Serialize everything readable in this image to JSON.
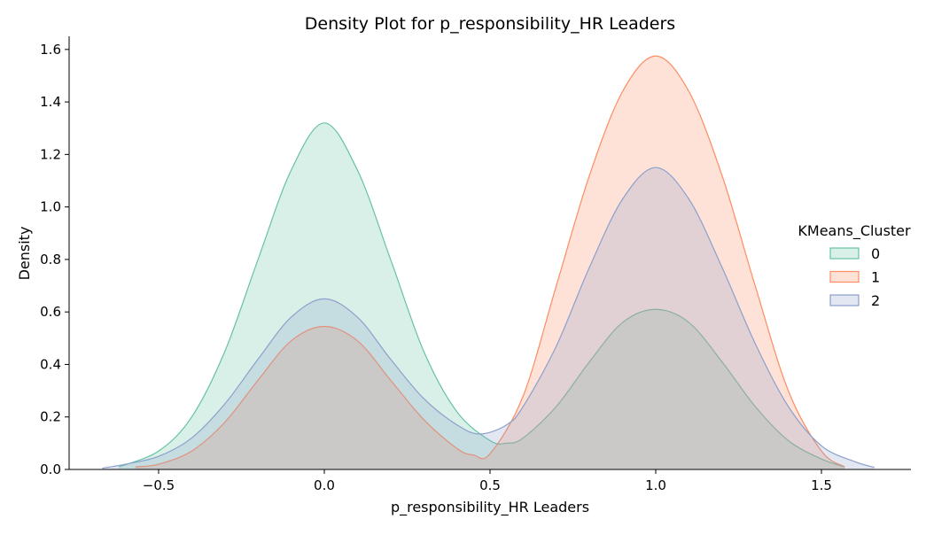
{
  "chart_data": {
    "type": "area",
    "title": "Density Plot for p_responsibility_HR Leaders",
    "xlabel": "p_responsibility_HR Leaders",
    "ylabel": "Density",
    "xlim": [
      -0.77,
      1.77
    ],
    "ylim": [
      0,
      1.65
    ],
    "xticks": [
      -0.5,
      0.0,
      0.5,
      1.0,
      1.5
    ],
    "xtick_labels": [
      "−0.5",
      "0.0",
      "0.5",
      "1.0",
      "1.5"
    ],
    "yticks": [
      0.0,
      0.2,
      0.4,
      0.6,
      0.8,
      1.0,
      1.2,
      1.4,
      1.6
    ],
    "ytick_labels": [
      "0.0",
      "0.2",
      "0.4",
      "0.6",
      "0.8",
      "1.0",
      "1.2",
      "1.4",
      "1.6"
    ],
    "grid": false,
    "legend": {
      "title": "KMeans_Cluster",
      "placement": "right"
    },
    "series": [
      {
        "name": "0",
        "color": "#66c2a5",
        "x": [
          -0.62,
          -0.5,
          -0.4,
          -0.3,
          -0.2,
          -0.1,
          0.0,
          0.1,
          0.2,
          0.3,
          0.4,
          0.5,
          0.55,
          0.6,
          0.7,
          0.8,
          0.9,
          1.0,
          1.1,
          1.2,
          1.3,
          1.4,
          1.5,
          1.57
        ],
        "y": [
          0.01,
          0.07,
          0.2,
          0.45,
          0.8,
          1.14,
          1.32,
          1.14,
          0.8,
          0.45,
          0.22,
          0.11,
          0.1,
          0.12,
          0.24,
          0.41,
          0.56,
          0.61,
          0.56,
          0.41,
          0.24,
          0.11,
          0.04,
          0.01
        ]
      },
      {
        "name": "1",
        "color": "#fc8d62",
        "x": [
          -0.57,
          -0.5,
          -0.4,
          -0.3,
          -0.2,
          -0.1,
          0.0,
          0.1,
          0.2,
          0.3,
          0.4,
          0.45,
          0.5,
          0.6,
          0.7,
          0.8,
          0.9,
          1.0,
          1.1,
          1.2,
          1.3,
          1.4,
          1.5,
          1.57
        ],
        "y": [
          0.01,
          0.02,
          0.07,
          0.18,
          0.34,
          0.49,
          0.545,
          0.49,
          0.34,
          0.19,
          0.08,
          0.055,
          0.06,
          0.28,
          0.7,
          1.12,
          1.44,
          1.575,
          1.44,
          1.12,
          0.7,
          0.3,
          0.07,
          0.01
        ]
      },
      {
        "name": "2",
        "color": "#8da0cb",
        "x": [
          -0.67,
          -0.6,
          -0.5,
          -0.4,
          -0.3,
          -0.2,
          -0.1,
          0.0,
          0.1,
          0.2,
          0.3,
          0.4,
          0.47,
          0.55,
          0.6,
          0.7,
          0.8,
          0.9,
          1.0,
          1.1,
          1.2,
          1.3,
          1.4,
          1.5,
          1.6,
          1.66
        ],
        "y": [
          0.005,
          0.02,
          0.05,
          0.12,
          0.25,
          0.42,
          0.58,
          0.65,
          0.58,
          0.42,
          0.27,
          0.17,
          0.135,
          0.17,
          0.24,
          0.47,
          0.77,
          1.03,
          1.15,
          1.03,
          0.77,
          0.48,
          0.24,
          0.09,
          0.03,
          0.008
        ]
      }
    ]
  }
}
